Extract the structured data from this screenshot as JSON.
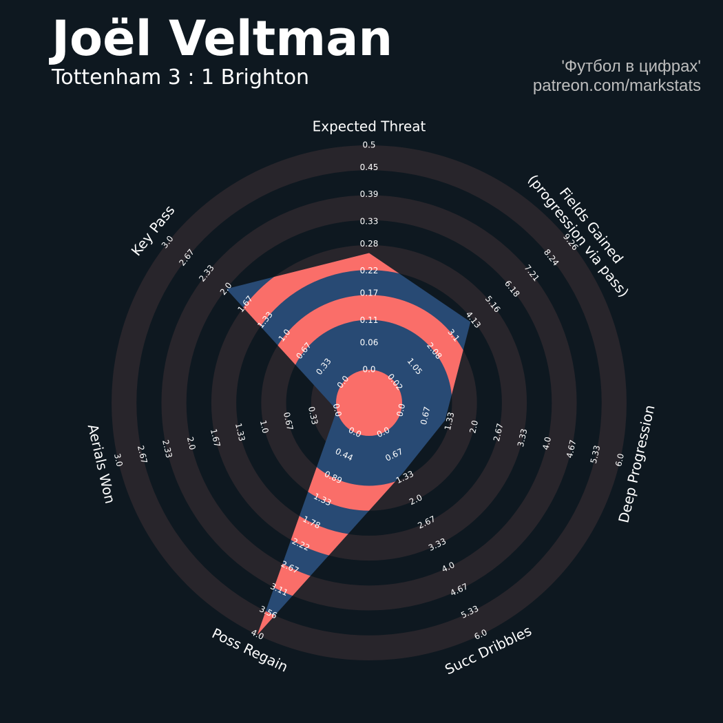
{
  "chart_data": {
    "type": "radar",
    "title": "Joël Veltman",
    "subtitle": "Tottenham 3 : 1 Brighton",
    "credits": [
      "'Футбол в цифрах'",
      "patreon.com/markstats"
    ],
    "categories": [
      "Expected Threat",
      "Fields Gained\n(progression via pass)",
      "Deep Progression",
      "Succ Dribbles",
      "Poss Regain",
      "Aerials Won",
      "Key Pass"
    ],
    "values": [
      0.26,
      4.0,
      1.2,
      1.2,
      4.0,
      0,
      2.0
    ],
    "axes": [
      {
        "lim": [
          0,
          0.5
        ],
        "ticks": [
          {
            "value": 0,
            "label": "0.0"
          },
          0.06,
          0.11,
          0.17,
          0.22,
          0.28,
          0.33,
          0.39,
          0.45,
          0.5
        ]
      },
      {
        "lim": [
          0.02,
          9.26
        ],
        "ticks": [
          0.02,
          1.05,
          2.08,
          3.1,
          4.13,
          5.16,
          6.18,
          7.21,
          8.24,
          9.26
        ]
      },
      {
        "lim": [
          0,
          6
        ],
        "ticks": [
          {
            "value": 0,
            "label": "0.0"
          },
          0.67,
          1.33,
          {
            "value": 2,
            "label": "2.0"
          },
          2.67,
          3.33,
          {
            "value": 4,
            "label": "4.0"
          },
          4.67,
          5.33,
          {
            "value": 6,
            "label": "6.0"
          }
        ]
      },
      {
        "lim": [
          0,
          6
        ],
        "ticks": [
          {
            "value": 0,
            "label": "0.0"
          },
          0.67,
          1.33,
          {
            "value": 2,
            "label": "2.0"
          },
          2.67,
          3.33,
          {
            "value": 4,
            "label": "4.0"
          },
          4.67,
          5.33,
          {
            "value": 6,
            "label": "6.0"
          }
        ]
      },
      {
        "lim": [
          0,
          4
        ],
        "ticks": [
          {
            "value": 0,
            "label": "0.0"
          },
          0.44,
          0.89,
          1.33,
          1.78,
          2.22,
          2.67,
          3.11,
          3.56,
          {
            "value": 4,
            "label": "4.0"
          }
        ]
      },
      {
        "lim": [
          0,
          3
        ],
        "ticks": [
          {
            "value": 0,
            "label": "0.0"
          },
          0.33,
          0.67,
          {
            "value": 1,
            "label": "1.0"
          },
          1.33,
          1.67,
          {
            "value": 2,
            "label": "2.0"
          },
          2.33,
          2.67,
          {
            "value": 3,
            "label": "3.0"
          }
        ]
      },
      {
        "lim": [
          0,
          3
        ],
        "ticks": [
          {
            "value": 0,
            "label": "0.0"
          },
          0.33,
          0.67,
          {
            "value": 1,
            "label": "1.0"
          },
          1.33,
          1.67,
          {
            "value": 2,
            "label": "2.0"
          },
          2.33,
          2.67,
          {
            "value": 3,
            "label": "3.0"
          }
        ]
      }
    ],
    "color": "#284a74",
    "alt_color": "#fa6e69",
    "ring_color": "#28252b",
    "background": "#0e1820"
  }
}
